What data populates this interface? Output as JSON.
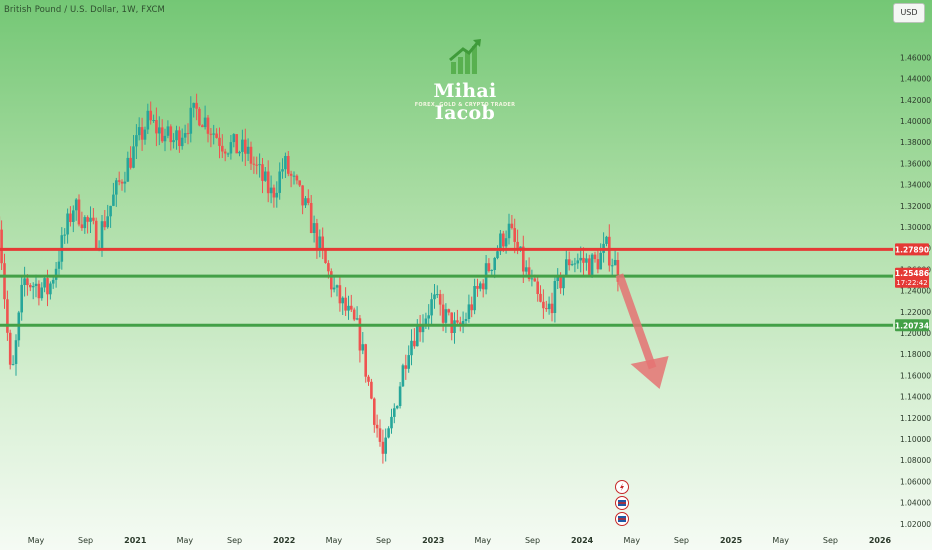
{
  "header": {
    "symbol_title": "British Pound / U.S. Dollar, 1W, FXCM",
    "currency": "USD"
  },
  "logo": {
    "name": "Mihai Iacob",
    "tagline": "FOREX, GOLD & CRYPTO TRADER"
  },
  "chart_data": {
    "type": "candlestick",
    "timeframe": "1W",
    "ylim": [
      1.01,
      1.47
    ],
    "x_range": [
      "2020-03",
      "2026-03"
    ],
    "y_ticks": [
      1.02,
      1.04,
      1.06,
      1.08,
      1.1,
      1.12,
      1.14,
      1.16,
      1.18,
      1.2,
      1.22,
      1.24,
      1.26,
      1.28,
      1.3,
      1.32,
      1.34,
      1.36,
      1.38,
      1.4,
      1.42,
      1.44,
      1.46
    ],
    "y_tick_labels": [
      "1.02000",
      "1.04000",
      "1.06000",
      "1.08000",
      "1.10000",
      "1.12000",
      "1.14000",
      "1.16000",
      "1.18000",
      "1.20000",
      "1.22000",
      "1.24000",
      "1.26000",
      "1.28000",
      "1.30000",
      "1.32000",
      "1.34000",
      "1.36000",
      "1.38000",
      "1.40000",
      "1.42000",
      "1.44000",
      "1.46000"
    ],
    "x_ticks": [
      {
        "date": "2020-05",
        "label": "May"
      },
      {
        "date": "2020-09",
        "label": "Sep"
      },
      {
        "date": "2021-01",
        "label": "2021"
      },
      {
        "date": "2021-05",
        "label": "May"
      },
      {
        "date": "2021-09",
        "label": "Sep"
      },
      {
        "date": "2022-01",
        "label": "2022"
      },
      {
        "date": "2022-05",
        "label": "May"
      },
      {
        "date": "2022-09",
        "label": "Sep"
      },
      {
        "date": "2023-01",
        "label": "2023"
      },
      {
        "date": "2023-05",
        "label": "May"
      },
      {
        "date": "2023-09",
        "label": "Sep"
      },
      {
        "date": "2024-01",
        "label": "2024"
      },
      {
        "date": "2024-05",
        "label": "May"
      },
      {
        "date": "2024-09",
        "label": "Sep"
      },
      {
        "date": "2025-01",
        "label": "2025"
      },
      {
        "date": "2025-05",
        "label": "May"
      },
      {
        "date": "2025-09",
        "label": "Sep"
      },
      {
        "date": "2026-01",
        "label": "2026"
      }
    ],
    "price_path": [
      {
        "date": "2020-02",
        "price": 1.31
      },
      {
        "date": "2020-03",
        "price": 1.15
      },
      {
        "date": "2020-04",
        "price": 1.25
      },
      {
        "date": "2020-06",
        "price": 1.24
      },
      {
        "date": "2020-08",
        "price": 1.32
      },
      {
        "date": "2020-10",
        "price": 1.29
      },
      {
        "date": "2020-12",
        "price": 1.35
      },
      {
        "date": "2021-02",
        "price": 1.4
      },
      {
        "date": "2021-04",
        "price": 1.38
      },
      {
        "date": "2021-06",
        "price": 1.41
      },
      {
        "date": "2021-08",
        "price": 1.38
      },
      {
        "date": "2021-10",
        "price": 1.37
      },
      {
        "date": "2021-12",
        "price": 1.33
      },
      {
        "date": "2022-01",
        "price": 1.36
      },
      {
        "date": "2022-03",
        "price": 1.31
      },
      {
        "date": "2022-05",
        "price": 1.24
      },
      {
        "date": "2022-07",
        "price": 1.2
      },
      {
        "date": "2022-09",
        "price": 1.08
      },
      {
        "date": "2022-11",
        "price": 1.19
      },
      {
        "date": "2023-01",
        "price": 1.23
      },
      {
        "date": "2023-03",
        "price": 1.2
      },
      {
        "date": "2023-05",
        "price": 1.25
      },
      {
        "date": "2023-07",
        "price": 1.3
      },
      {
        "date": "2023-08",
        "price": 1.27
      },
      {
        "date": "2023-10",
        "price": 1.215
      },
      {
        "date": "2023-12",
        "price": 1.27
      },
      {
        "date": "2024-02",
        "price": 1.265
      },
      {
        "date": "2024-03",
        "price": 1.28
      },
      {
        "date": "2024-04",
        "price": 1.255
      }
    ],
    "horizontal_levels": [
      {
        "price": 1.2789,
        "label": "1.27890",
        "color": "#e53935"
      },
      {
        "price": 1.2537,
        "label": "1.25368",
        "color": "#43a047"
      },
      {
        "price": 1.2073,
        "label": "1.20734",
        "color": "#43a047"
      }
    ],
    "current_price": {
      "price": 1.25486,
      "label": "1.25486",
      "countdown": "17:22:42",
      "color": "#e53935"
    },
    "projection_arrow": {
      "from": {
        "date": "2024-04",
        "price": 1.255
      },
      "to": {
        "date": "2024-07",
        "price": 1.15
      },
      "color": "#e57373"
    },
    "candle_colors": {
      "up": "#26a69a",
      "down": "#ef5350"
    },
    "grid": false,
    "event_icons": [
      "lightning-icon",
      "flag-icon",
      "flag-icon"
    ]
  }
}
